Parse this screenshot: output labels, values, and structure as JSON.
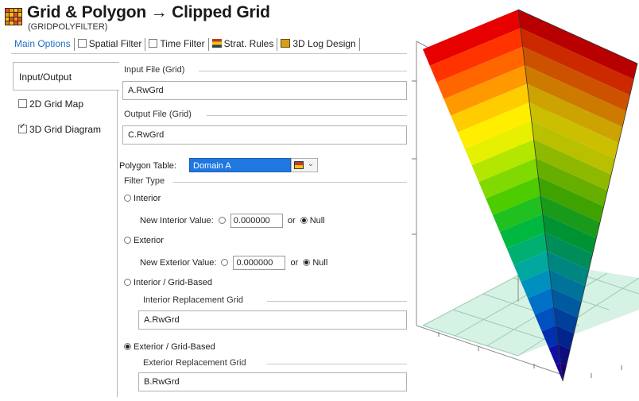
{
  "title": "Grid & Polygon → Clipped Grid",
  "subtitle": "(GRIDPOLYFILTER)",
  "tabs": [
    {
      "label": "Main Options"
    },
    {
      "label": "Spatial Filter"
    },
    {
      "label": "Time Filter"
    },
    {
      "label": "Strat. Rules"
    },
    {
      "label": "3D Log Design"
    }
  ],
  "nav": {
    "input_output": "Input/Output",
    "grid_2d": "2D Grid Map",
    "grid_3d": "3D Grid Diagram"
  },
  "input_file": {
    "label": "Input File (Grid)",
    "value": "A.RwGrd"
  },
  "output_file": {
    "label": "Output File (Grid)",
    "value": "C.RwGrd"
  },
  "polygon": {
    "label": "Polygon Table:",
    "value": "Domain A"
  },
  "filter": {
    "label": "Filter Type",
    "interior": "Interior",
    "new_interior_label": "New Interior Value:",
    "interior_value": "0.000000",
    "or1": "or",
    "null1": "Null",
    "exterior": "Exterior",
    "new_exterior_label": "New Exterior Value:",
    "exterior_value": "0.000000",
    "or2": "or",
    "null2": "Null",
    "interior_grid": "Interior / Grid-Based",
    "interior_repl_label": "Interior Replacement Grid",
    "interior_repl_value": "A.RwGrd",
    "exterior_grid": "Exterior / Grid-Based",
    "exterior_repl_label": "Exterior Replacement Grid",
    "exterior_repl_value": "B.RwGrd"
  },
  "visual": {
    "band_colors": [
      "#e60000",
      "#ff3300",
      "#ff6600",
      "#ff9900",
      "#ffcc00",
      "#ffee00",
      "#e6f000",
      "#b3e600",
      "#80d900",
      "#4dcc00",
      "#20c020",
      "#00b840",
      "#00b070",
      "#00a8a0",
      "#0090c0",
      "#0070c8",
      "#0050c0",
      "#0030b0",
      "#1010a0",
      "#200090"
    ],
    "floor_color": "#d6f2e4"
  }
}
